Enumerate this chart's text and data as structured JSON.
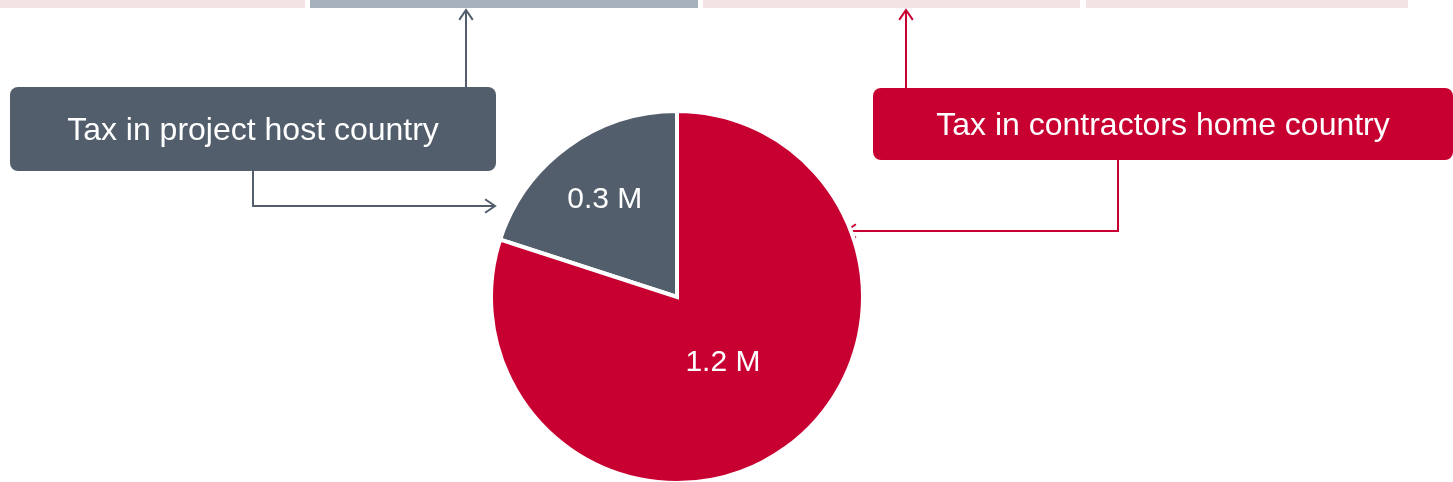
{
  "chart_data": {
    "type": "pie",
    "categories": [
      "Tax in project host country",
      "Tax in contractors home country"
    ],
    "values": [
      0.3,
      1.2
    ],
    "colors": [
      "#525e6b",
      "#c80032"
    ],
    "value_labels": [
      "0.3 M",
      "1.2 M"
    ]
  }
}
